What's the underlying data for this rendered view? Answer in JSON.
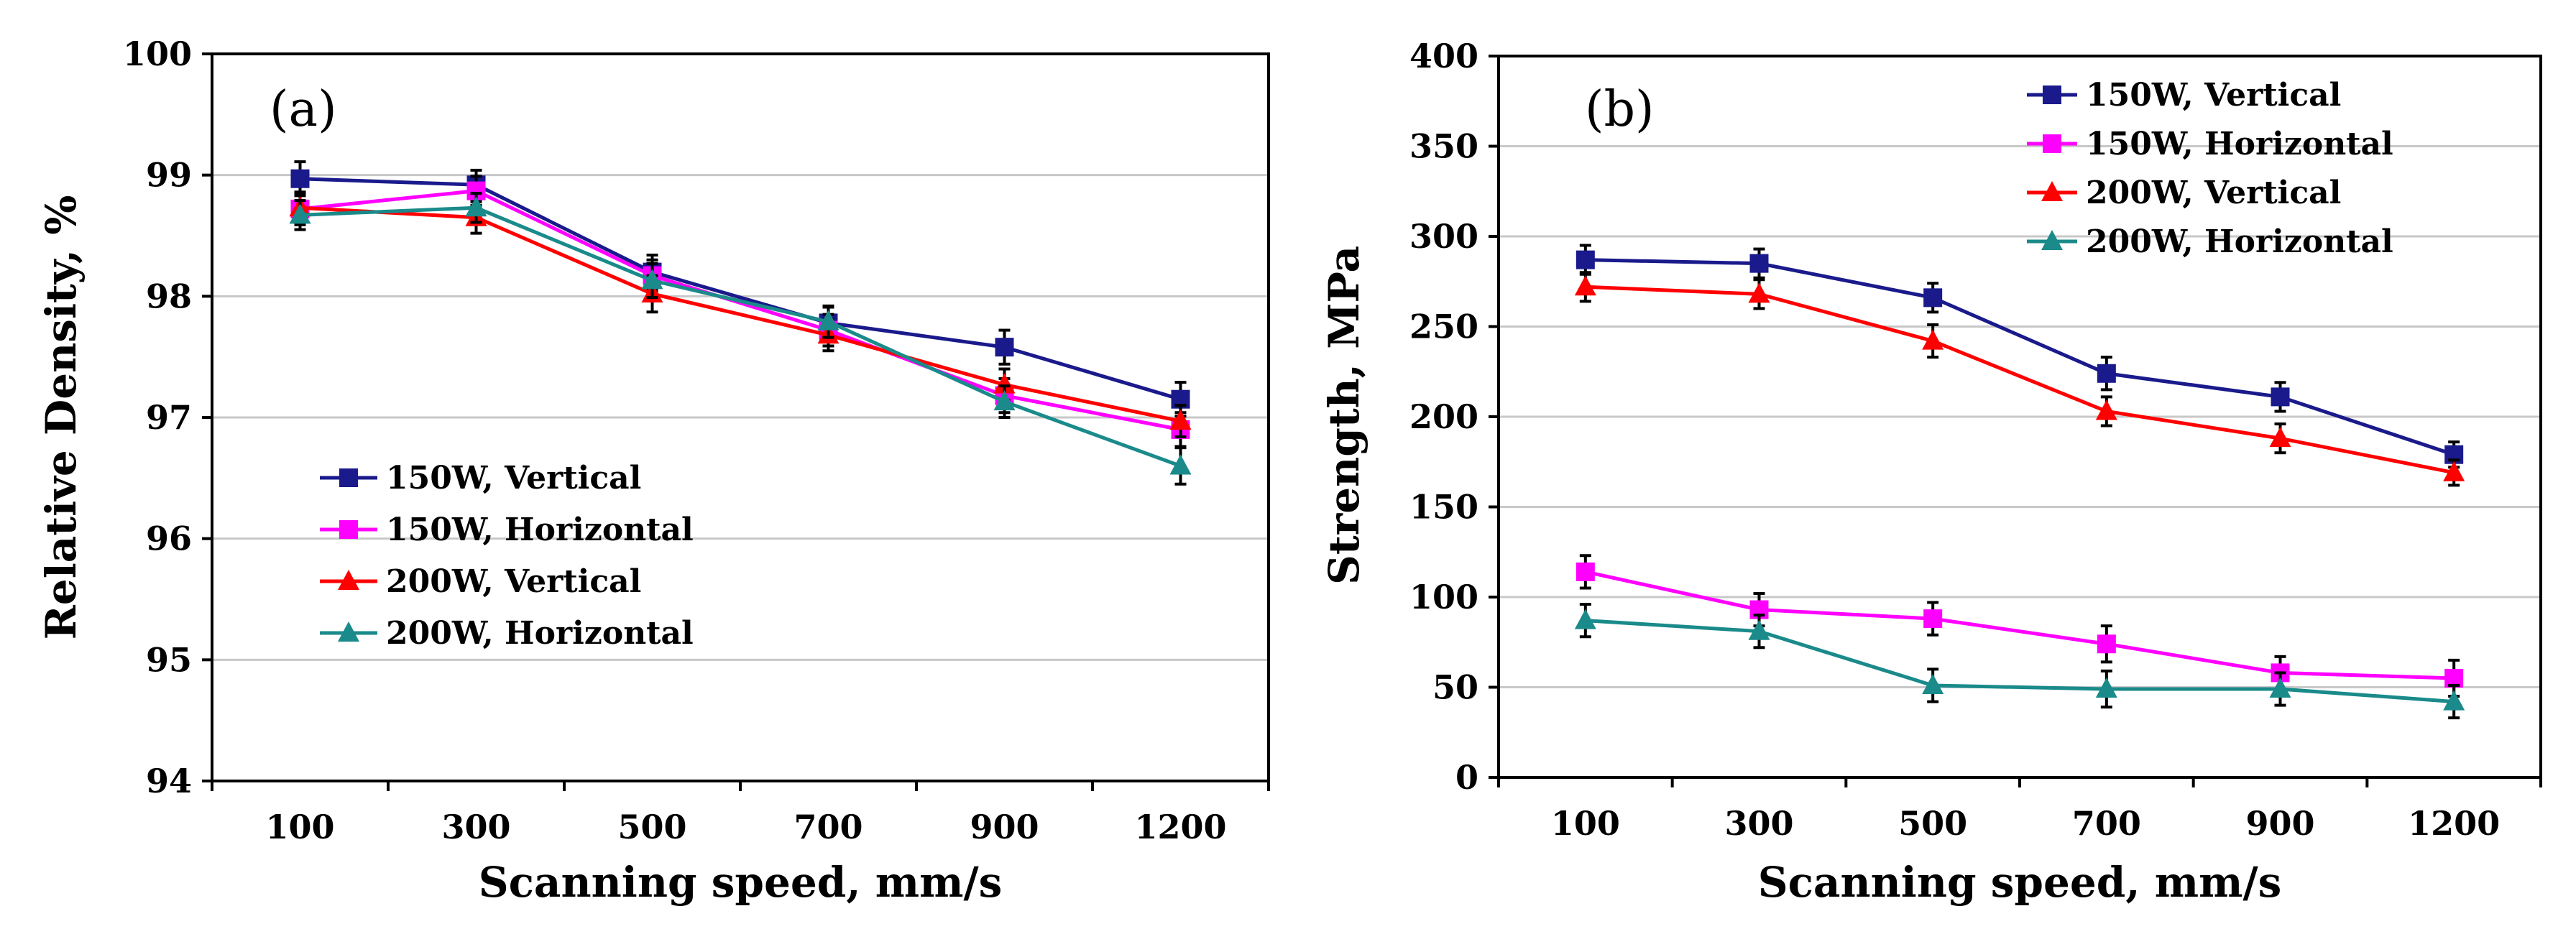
{
  "chart_data": [
    {
      "type": "line",
      "panel_label": "(a)",
      "title": "",
      "xlabel": "Scanning speed, mm/s",
      "ylabel": "Relative Density, %",
      "categories": [
        "100",
        "300",
        "500",
        "700",
        "900",
        "1200"
      ],
      "ylim": [
        94,
        100
      ],
      "yticks": [
        "94",
        "95",
        "96",
        "97",
        "98",
        "99",
        "100"
      ],
      "grid": true,
      "legend_position": "lower-left",
      "series": [
        {
          "name": "150W, Vertical",
          "color": "#1a1a8c",
          "marker": "square",
          "values": [
            98.97,
            98.92,
            98.2,
            97.78,
            97.58,
            97.15
          ],
          "errors": [
            0.14,
            0.12,
            0.14,
            0.13,
            0.14,
            0.14
          ]
        },
        {
          "name": "150W, Horizontal",
          "color": "#ff00ff",
          "marker": "square",
          "values": [
            98.72,
            98.87,
            98.17,
            97.72,
            97.18,
            96.9
          ],
          "errors": [
            0.13,
            0.12,
            0.13,
            0.13,
            0.14,
            0.14
          ]
        },
        {
          "name": "200W, Vertical",
          "color": "#ff0000",
          "marker": "triangle",
          "values": [
            98.73,
            98.65,
            98.02,
            97.68,
            97.27,
            96.97
          ],
          "errors": [
            0.13,
            0.13,
            0.15,
            0.13,
            0.13,
            0.13
          ]
        },
        {
          "name": "200W, Horizontal",
          "color": "#1a8a8a",
          "marker": "triangle",
          "values": [
            98.67,
            98.73,
            98.13,
            97.79,
            97.13,
            96.6
          ],
          "errors": [
            0.12,
            0.12,
            0.14,
            0.13,
            0.13,
            0.15
          ]
        }
      ]
    },
    {
      "type": "line",
      "panel_label": "(b)",
      "title": "",
      "xlabel": "Scanning speed, mm/s",
      "ylabel": "Strength, MPa",
      "categories": [
        "100",
        "300",
        "500",
        "700",
        "900",
        "1200"
      ],
      "ylim": [
        0,
        400
      ],
      "yticks": [
        "0",
        "50",
        "100",
        "150",
        "200",
        "250",
        "300",
        "350",
        "400"
      ],
      "grid": true,
      "legend_position": "top-center",
      "series": [
        {
          "name": "150W, Vertical",
          "color": "#1a1a8c",
          "marker": "square",
          "values": [
            287,
            285,
            266,
            224,
            211,
            179
          ],
          "errors": [
            8,
            8,
            8,
            9,
            8,
            7
          ]
        },
        {
          "name": "150W, Horizontal",
          "color": "#ff00ff",
          "marker": "square",
          "values": [
            114,
            93,
            88,
            74,
            58,
            55
          ],
          "errors": [
            9,
            9,
            9,
            10,
            9,
            10
          ]
        },
        {
          "name": "200W, Vertical",
          "color": "#ff0000",
          "marker": "triangle",
          "values": [
            272,
            268,
            242,
            203,
            188,
            169
          ],
          "errors": [
            8,
            8,
            9,
            8,
            8,
            7
          ]
        },
        {
          "name": "200W, Horizontal",
          "color": "#1a8a8a",
          "marker": "triangle",
          "values": [
            87,
            81,
            51,
            49,
            49,
            42
          ],
          "errors": [
            9,
            9,
            9,
            10,
            9,
            9
          ]
        }
      ]
    }
  ]
}
